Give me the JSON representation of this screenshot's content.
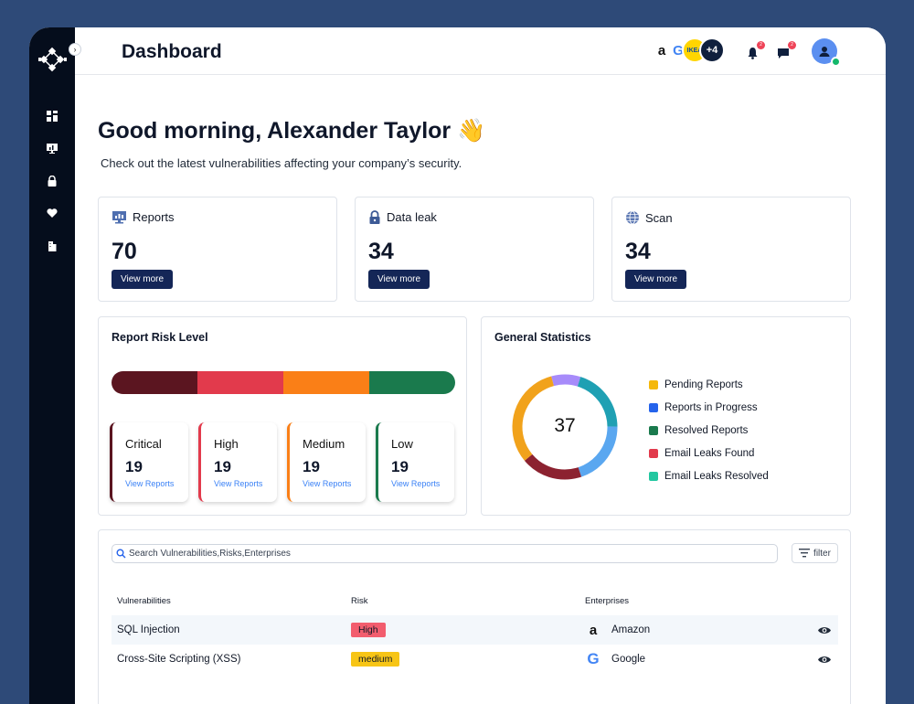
{
  "header": {
    "title": "Dashboard"
  },
  "enterprises_stack": {
    "more_label": "+4"
  },
  "notifications": {
    "bell_count": "2",
    "chat_count": "2"
  },
  "greeting": {
    "title": "Good morning, Alexander Taylor",
    "emoji": "👋",
    "subtitle": "Check out the latest vulnerabilities affecting your company’s security."
  },
  "stats": [
    {
      "title": "Reports",
      "value": "70",
      "button": "View more",
      "icon": "monitor-chart-icon"
    },
    {
      "title": "Data leak",
      "value": "34",
      "button": "View more",
      "icon": "lock-icon"
    },
    {
      "title": "Scan",
      "value": "34",
      "button": "View more",
      "icon": "globe-icon"
    }
  ],
  "risk_panel": {
    "title": "Report Risk Level",
    "bar_colors": [
      "#5b1520",
      "#e23a4c",
      "#fa7f17",
      "#1a7a4d"
    ],
    "levels": [
      {
        "label": "Critical",
        "value": "19",
        "link": "View Reports",
        "color": "#5b1520"
      },
      {
        "label": "High",
        "value": "19",
        "link": "View Reports",
        "color": "#e23a4c"
      },
      {
        "label": "Medium",
        "value": "19",
        "link": "View Reports",
        "color": "#fa7f17"
      },
      {
        "label": "Low",
        "value": "19",
        "link": "View Reports",
        "color": "#1a7a4d"
      }
    ]
  },
  "general_stats": {
    "title": "General Statistics",
    "center_value": "37",
    "segments": [
      {
        "color": "#a78bfa",
        "fraction": 0.09
      },
      {
        "color": "#1fa0b3",
        "fraction": 0.2
      },
      {
        "color": "#5aa7f0",
        "fraction": 0.2
      },
      {
        "color": "#8c2230",
        "fraction": 0.19
      },
      {
        "color": "#f1a21b",
        "fraction": 0.32
      }
    ],
    "legend": [
      {
        "label": "Pending Reports",
        "color": "#f5b80a"
      },
      {
        "label": "Reports in Progress",
        "color": "#2563eb"
      },
      {
        "label": "Resolved Reports",
        "color": "#1a7a4d"
      },
      {
        "label": "Email Leaks Found",
        "color": "#e23a4c"
      },
      {
        "label": "Email Leaks Resolved",
        "color": "#22c7a0"
      }
    ]
  },
  "table": {
    "search_placeholder": "Search Vulnerabilities,Risks,Enterprises",
    "filter_label": "filter",
    "columns": [
      "Vulnerabilities",
      "Risk",
      "Enterprises"
    ],
    "rows": [
      {
        "vulnerability": "SQL Injection",
        "risk": "High",
        "risk_color": "#f25d6e",
        "enterprise": "Amazon",
        "logo": "a"
      },
      {
        "vulnerability": "Cross-Site Scripting (XSS)",
        "risk": "medium",
        "risk_color": "#f7c516",
        "enterprise": "Google",
        "logo": "G"
      }
    ]
  }
}
